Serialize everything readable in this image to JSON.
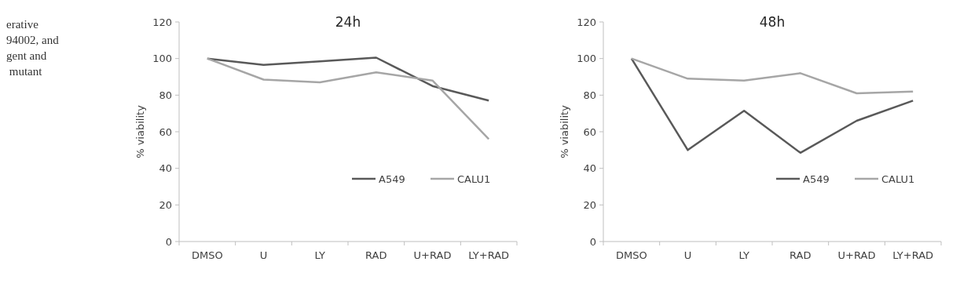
{
  "chart_data": [
    {
      "type": "other",
      "annotations": [
        "erative",
        "94002, and",
        "gent and",
        " mutant"
      ]
    },
    {
      "type": "line",
      "title": "24h",
      "ylabel": "% viability",
      "categories": [
        "DMSO",
        "U",
        "LY",
        "RAD",
        "U+RAD",
        "LY+RAD"
      ],
      "ylim": [
        0,
        120
      ],
      "yticks": [
        0,
        20,
        40,
        60,
        80,
        100,
        120
      ],
      "legend": "bottom right",
      "marker": "none",
      "series": [
        {
          "name": "A549",
          "color": "#595959",
          "values": [
            100,
            96.5,
            98.5,
            100.5,
            85,
            77
          ]
        },
        {
          "name": "CALU1",
          "color": "#a6a6a6",
          "values": [
            100,
            88.5,
            87,
            92.5,
            88,
            56
          ]
        }
      ]
    },
    {
      "type": "line",
      "title": "48h",
      "ylabel": "% viability",
      "categories": [
        "DMSO",
        "U",
        "LY",
        "RAD",
        "U+RAD",
        "LY+RAD"
      ],
      "ylim": [
        0,
        120
      ],
      "yticks": [
        0,
        20,
        40,
        60,
        80,
        100,
        120
      ],
      "legend": "bottom right",
      "marker": "none",
      "series": [
        {
          "name": "A549",
          "color": "#595959",
          "values": [
            100,
            50,
            71.5,
            48.5,
            66,
            77
          ]
        },
        {
          "name": "CALU1",
          "color": "#a6a6a6",
          "values": [
            100,
            89,
            88,
            92,
            81,
            82
          ]
        }
      ]
    }
  ]
}
